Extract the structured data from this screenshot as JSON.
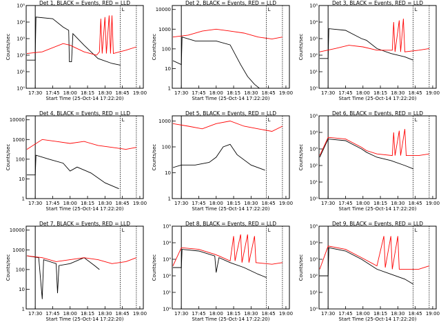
{
  "chart_data": [
    {
      "type": "line",
      "title": "Det 1, BLACK = Events, RED = LLD",
      "xlabel": "Start Time (25-Oct-14 17:22:20)",
      "ylabel": "Counts/sec",
      "yscale": "log",
      "yticks": [
        "10⁰",
        "10¹",
        "10²",
        "10³",
        "10⁴",
        "10⁵"
      ],
      "ylim_exp": [
        0,
        5
      ],
      "series": [
        {
          "name": "BLACK = Events",
          "color": "#000000",
          "points": [
            [
              17.38,
              1.7
            ],
            [
              17.5,
              1.7
            ],
            [
              17.5,
              2.1
            ],
            [
              17.51,
              4.3
            ],
            [
              17.75,
              4.2
            ],
            [
              17.9,
              3.7
            ],
            [
              17.98,
              3.5
            ],
            [
              17.99,
              1.6
            ],
            [
              18.02,
              1.6
            ],
            [
              18.04,
              3.3
            ],
            [
              18.2,
              2.6
            ],
            [
              18.3,
              2.2
            ],
            [
              18.4,
              1.8
            ],
            [
              18.6,
              1.5
            ],
            [
              18.72,
              1.4
            ]
          ]
        },
        {
          "name": "RED = LLD",
          "color": "#ff0000",
          "points": [
            [
              17.38,
              2.1
            ],
            [
              17.6,
              2.2
            ],
            [
              17.9,
              2.7
            ],
            [
              18.0,
              2.6
            ],
            [
              18.2,
              2.2
            ],
            [
              18.38,
              2.0
            ],
            [
              18.42,
              2.2
            ],
            [
              18.44,
              4.2
            ],
            [
              18.46,
              2.1
            ],
            [
              18.5,
              4.3
            ],
            [
              18.52,
              2.1
            ],
            [
              18.56,
              4.4
            ],
            [
              18.58,
              2.1
            ],
            [
              18.6,
              4.4
            ],
            [
              18.62,
              2.1
            ],
            [
              18.8,
              2.3
            ],
            [
              18.95,
              2.5
            ]
          ]
        }
      ]
    },
    {
      "type": "line",
      "title": "Det 2, BLACK = Events, RED = LLD",
      "xlabel": "Start Time (25-Oct-14 17:22:20)",
      "ylabel": "Counts/sec",
      "yscale": "log",
      "yticks": [
        "1",
        "10",
        "100",
        "1000",
        "10000"
      ],
      "ylim_exp": [
        0,
        4.2
      ],
      "series": [
        {
          "name": "BLACK = Events",
          "color": "#000000",
          "points": [
            [
              17.38,
              1.4
            ],
            [
              17.5,
              1.2
            ],
            [
              17.51,
              2.6
            ],
            [
              17.7,
              2.4
            ],
            [
              18.0,
              2.4
            ],
            [
              18.2,
              2.2
            ],
            [
              18.35,
              1.2
            ],
            [
              18.45,
              0.6
            ],
            [
              18.55,
              0.2
            ],
            [
              18.62,
              0.0
            ]
          ]
        },
        {
          "name": "RED = LLD",
          "color": "#ff0000",
          "points": [
            [
              17.38,
              2.6
            ],
            [
              17.6,
              2.7
            ],
            [
              17.8,
              2.9
            ],
            [
              18.0,
              3.0
            ],
            [
              18.2,
              2.9
            ],
            [
              18.4,
              2.8
            ],
            [
              18.6,
              2.6
            ],
            [
              18.8,
              2.5
            ],
            [
              18.95,
              2.6
            ]
          ]
        }
      ]
    },
    {
      "type": "line",
      "title": "Det 3, BLACK = Events, RED = LLD",
      "xlabel": "Start Time (25-Oct-14 17:22:20)",
      "ylabel": "Counts/sec",
      "yscale": "log",
      "yticks": [
        "10⁰",
        "10¹",
        "10²",
        "10³",
        "10⁴",
        "10⁵"
      ],
      "ylim_exp": [
        0,
        5
      ],
      "series": [
        {
          "name": "BLACK = Events",
          "color": "#000000",
          "points": [
            [
              17.38,
              1.8
            ],
            [
              17.5,
              1.8
            ],
            [
              17.51,
              3.6
            ],
            [
              17.75,
              3.5
            ],
            [
              17.98,
              3.0
            ],
            [
              18.05,
              2.9
            ],
            [
              18.2,
              2.4
            ],
            [
              18.4,
              2.1
            ],
            [
              18.6,
              1.9
            ],
            [
              18.72,
              1.7
            ]
          ]
        },
        {
          "name": "RED = LLD",
          "color": "#ff0000",
          "points": [
            [
              17.38,
              2.2
            ],
            [
              17.6,
              2.4
            ],
            [
              17.8,
              2.6
            ],
            [
              18.0,
              2.5
            ],
            [
              18.2,
              2.3
            ],
            [
              18.42,
              2.3
            ],
            [
              18.44,
              4.0
            ],
            [
              18.46,
              2.2
            ],
            [
              18.52,
              4.1
            ],
            [
              18.54,
              2.2
            ],
            [
              18.58,
              4.2
            ],
            [
              18.6,
              2.2
            ],
            [
              18.8,
              2.3
            ],
            [
              18.95,
              2.4
            ]
          ]
        }
      ]
    },
    {
      "type": "line",
      "title": "Det 4, BLACK = Events, RED = LLD",
      "xlabel": "Start Time (25-Oct-14 17:22:20)",
      "ylabel": "Counts/sec",
      "yscale": "log",
      "yticks": [
        "1",
        "10",
        "100",
        "1000",
        "10000"
      ],
      "ylim_exp": [
        0,
        4.2
      ],
      "series": [
        {
          "name": "BLACK = Events",
          "color": "#000000",
          "points": [
            [
              17.38,
              1.2
            ],
            [
              17.5,
              1.2
            ],
            [
              17.51,
              2.2
            ],
            [
              17.7,
              2.0
            ],
            [
              17.9,
              1.8
            ],
            [
              18.0,
              1.4
            ],
            [
              18.1,
              1.6
            ],
            [
              18.3,
              1.3
            ],
            [
              18.5,
              0.8
            ],
            [
              18.7,
              0.5
            ]
          ]
        },
        {
          "name": "RED = LLD",
          "color": "#ff0000",
          "points": [
            [
              17.38,
              2.5
            ],
            [
              17.6,
              3.0
            ],
            [
              17.8,
              2.9
            ],
            [
              18.0,
              2.8
            ],
            [
              18.2,
              2.9
            ],
            [
              18.4,
              2.7
            ],
            [
              18.6,
              2.6
            ],
            [
              18.8,
              2.5
            ],
            [
              18.95,
              2.6
            ]
          ]
        }
      ]
    },
    {
      "type": "line",
      "title": "Det 5, BLACK = Events, RED = LLD",
      "xlabel": "Start Time (25-Oct-14 17:22:20)",
      "ylabel": "Counts/sec",
      "yscale": "log",
      "yticks": [
        "1",
        "10",
        "100",
        "1000"
      ],
      "ylim_exp": [
        0,
        3.2
      ],
      "series": [
        {
          "name": "BLACK = Events",
          "color": "#000000",
          "points": [
            [
              17.38,
              1.2
            ],
            [
              17.5,
              1.3
            ],
            [
              17.7,
              1.3
            ],
            [
              17.9,
              1.4
            ],
            [
              18.0,
              1.6
            ],
            [
              18.1,
              2.0
            ],
            [
              18.2,
              2.1
            ],
            [
              18.3,
              1.7
            ],
            [
              18.5,
              1.3
            ],
            [
              18.7,
              1.1
            ]
          ]
        },
        {
          "name": "RED = LLD",
          "color": "#ff0000",
          "points": [
            [
              17.38,
              2.9
            ],
            [
              17.6,
              2.8
            ],
            [
              17.8,
              2.7
            ],
            [
              18.0,
              2.9
            ],
            [
              18.2,
              3.0
            ],
            [
              18.4,
              2.8
            ],
            [
              18.6,
              2.7
            ],
            [
              18.8,
              2.6
            ],
            [
              18.95,
              2.8
            ]
          ]
        }
      ]
    },
    {
      "type": "line",
      "title": "Det 6, BLACK = Events, RED = LLD",
      "xlabel": "Start Time (25-Oct-14 17:22:20)",
      "ylabel": "Counts/sec",
      "yscale": "log",
      "yticks": [
        "10⁰",
        "10¹",
        "10²",
        "10³",
        "10⁴",
        "10⁵"
      ],
      "ylim_exp": [
        0,
        5
      ],
      "series": [
        {
          "name": "BLACK = Events",
          "color": "#000000",
          "points": [
            [
              17.38,
              2.5
            ],
            [
              17.5,
              3.6
            ],
            [
              17.75,
              3.5
            ],
            [
              17.98,
              3.0
            ],
            [
              18.05,
              2.8
            ],
            [
              18.2,
              2.5
            ],
            [
              18.4,
              2.3
            ],
            [
              18.6,
              2.0
            ],
            [
              18.72,
              1.8
            ]
          ]
        },
        {
          "name": "RED = LLD",
          "color": "#ff0000",
          "points": [
            [
              17.38,
              2.6
            ],
            [
              17.5,
              3.7
            ],
            [
              17.75,
              3.6
            ],
            [
              17.98,
              3.1
            ],
            [
              18.05,
              2.9
            ],
            [
              18.2,
              2.7
            ],
            [
              18.42,
              2.6
            ],
            [
              18.44,
              4.0
            ],
            [
              18.46,
              2.6
            ],
            [
              18.52,
              4.1
            ],
            [
              18.54,
              2.6
            ],
            [
              18.6,
              4.2
            ],
            [
              18.62,
              2.6
            ],
            [
              18.8,
              2.6
            ],
            [
              18.95,
              2.7
            ]
          ]
        }
      ]
    },
    {
      "type": "line",
      "title": "Det 7, BLACK = Events, RED = LLD",
      "xlabel": "Start Time (25-Oct-14 17:22:20)",
      "ylabel": "Counts/sec",
      "yscale": "log",
      "yticks": [
        "1",
        "10",
        "100",
        "1000",
        "10000"
      ],
      "ylim_exp": [
        0,
        4.2
      ],
      "series": [
        {
          "name": "BLACK = Events",
          "color": "#000000",
          "points": [
            [
              17.38,
              2.7
            ],
            [
              17.55,
              2.6
            ],
            [
              17.6,
              0.5
            ],
            [
              17.62,
              2.5
            ],
            [
              17.8,
              2.3
            ],
            [
              17.82,
              0.8
            ],
            [
              17.84,
              2.2
            ],
            [
              18.0,
              2.3
            ],
            [
              18.2,
              2.6
            ],
            [
              18.35,
              2.2
            ],
            [
              18.42,
              2.0
            ]
          ]
        },
        {
          "name": "RED = LLD",
          "color": "#ff0000",
          "points": [
            [
              17.38,
              2.7
            ],
            [
              17.6,
              2.6
            ],
            [
              17.8,
              2.4
            ],
            [
              18.0,
              2.5
            ],
            [
              18.2,
              2.6
            ],
            [
              18.4,
              2.5
            ],
            [
              18.6,
              2.3
            ],
            [
              18.8,
              2.4
            ],
            [
              18.95,
              2.6
            ]
          ]
        }
      ]
    },
    {
      "type": "line",
      "title": "Det 8, BLACK = Events, RED = LLD",
      "xlabel": "Start Time (25-Oct-14 17:22:20)",
      "ylabel": "Counts/sec",
      "yscale": "log",
      "yticks": [
        "10⁰",
        "10¹",
        "10²",
        "10³",
        "10⁴",
        "10⁵"
      ],
      "ylim_exp": [
        0,
        5
      ],
      "series": [
        {
          "name": "BLACK = Events",
          "color": "#000000",
          "points": [
            [
              17.38,
              2.5
            ],
            [
              17.5,
              2.5
            ],
            [
              17.51,
              3.6
            ],
            [
              17.75,
              3.5
            ],
            [
              17.98,
              3.2
            ],
            [
              18.0,
              2.2
            ],
            [
              18.04,
              3.1
            ],
            [
              18.2,
              2.8
            ],
            [
              18.4,
              2.5
            ],
            [
              18.6,
              2.1
            ],
            [
              18.72,
              1.9
            ]
          ]
        },
        {
          "name": "RED = LLD",
          "color": "#ff0000",
          "points": [
            [
              17.38,
              2.6
            ],
            [
              17.5,
              3.7
            ],
            [
              17.75,
              3.6
            ],
            [
              17.98,
              3.3
            ],
            [
              18.04,
              3.2
            ],
            [
              18.2,
              2.9
            ],
            [
              18.25,
              4.4
            ],
            [
              18.27,
              2.9
            ],
            [
              18.35,
              4.5
            ],
            [
              18.37,
              2.8
            ],
            [
              18.45,
              4.5
            ],
            [
              18.47,
              2.8
            ],
            [
              18.55,
              4.4
            ],
            [
              18.57,
              2.8
            ],
            [
              18.8,
              2.7
            ],
            [
              18.95,
              2.8
            ]
          ]
        }
      ]
    },
    {
      "type": "line",
      "title": "Det 9, BLACK = Events, RED = LLD",
      "xlabel": "Start Time (25-Oct-14 17:22:20)",
      "ylabel": "Counts/sec",
      "yscale": "log",
      "yticks": [
        "10⁰",
        "10¹",
        "10²",
        "10³",
        "10⁴",
        "10⁵"
      ],
      "ylim_exp": [
        0,
        5
      ],
      "series": [
        {
          "name": "BLACK = Events",
          "color": "#000000",
          "points": [
            [
              17.38,
              2.0
            ],
            [
              17.5,
              2.0
            ],
            [
              17.51,
              3.7
            ],
            [
              17.75,
              3.5
            ],
            [
              17.98,
              3.0
            ],
            [
              18.2,
              2.4
            ],
            [
              18.4,
              2.1
            ],
            [
              18.6,
              1.8
            ],
            [
              18.72,
              1.5
            ]
          ]
        },
        {
          "name": "RED = LLD",
          "color": "#ff0000",
          "points": [
            [
              17.38,
              2.4
            ],
            [
              17.5,
              3.8
            ],
            [
              17.75,
              3.6
            ],
            [
              17.98,
              3.1
            ],
            [
              18.2,
              2.6
            ],
            [
              18.3,
              4.4
            ],
            [
              18.32,
              2.5
            ],
            [
              18.4,
              4.4
            ],
            [
              18.42,
              2.4
            ],
            [
              18.5,
              4.4
            ],
            [
              18.52,
              2.4
            ],
            [
              18.8,
              2.4
            ],
            [
              18.95,
              2.6
            ]
          ]
        }
      ]
    }
  ],
  "xticks": [
    "17:30",
    "17:45",
    "18:00",
    "18:15",
    "18:30",
    "18:45",
    "19:00"
  ],
  "xtick_values": [
    17.5,
    17.75,
    18.0,
    18.25,
    18.5,
    18.75,
    19.0
  ],
  "xlim": [
    17.37,
    19.05
  ],
  "marker_solid": 17.5,
  "marker_dotted": [
    18.72,
    18.95
  ],
  "marker_label": "L"
}
